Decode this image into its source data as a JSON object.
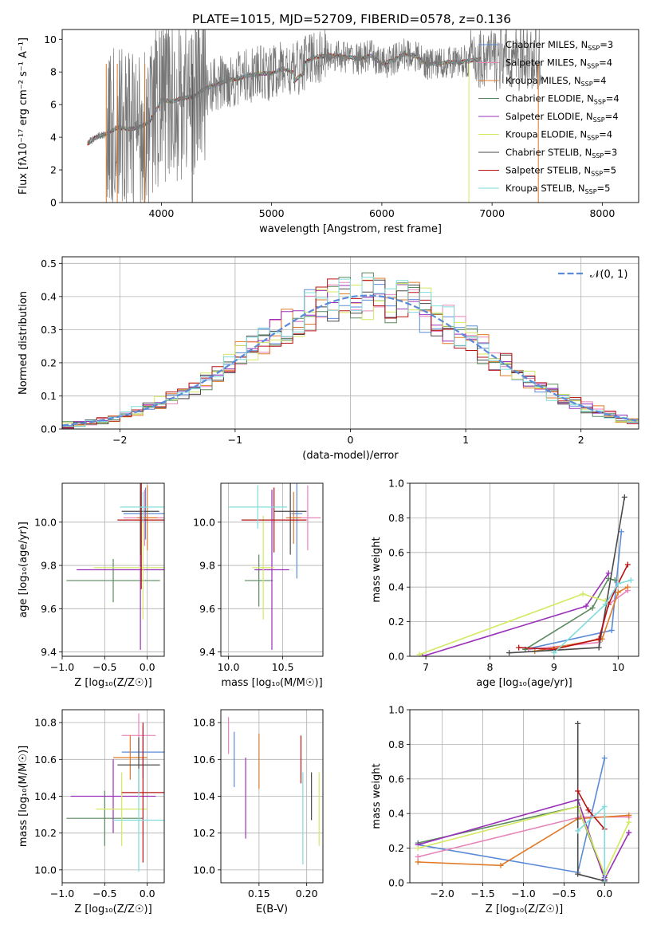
{
  "title": "PLATE=1015, MJD=52709, FIBERID=0578, z=0.136",
  "colors": {
    "Chabrier MILES": "#5b8bd8",
    "Salpeter MILES": "#e884b8",
    "Kroupa MILES": "#e07a28",
    "Chabrier ELODIE": "#5a8a5e",
    "Salpeter ELODIE": "#9a30b8",
    "Kroupa ELODIE": "#d4e860",
    "Chabrier STELIB": "#4a4a4a",
    "Salpeter STELIB": "#b81414",
    "Kroupa STELIB": "#80dcdc",
    "data": "#777777",
    "gauss": "#5b8bd8"
  },
  "chart_data": [
    {
      "id": "spectrum",
      "type": "line",
      "xlabel": "wavelength [Angstrom, rest frame]",
      "ylabel": "Flux [fλ10⁻¹⁷ erg cm⁻² s⁻¹ A⁻¹]",
      "xlim": [
        3100,
        8330
      ],
      "ylim": [
        0,
        10.6
      ],
      "xticks": [
        4000,
        5000,
        6000,
        7000,
        8000
      ],
      "yticks": [
        0,
        2,
        4,
        6,
        8,
        10
      ],
      "grid": false,
      "legend": "top-right",
      "legend_entries": [
        "Chabrier MILES, N_SSP=3",
        "Salpeter MILES, N_SSP=4",
        "Kroupa MILES, N_SSP=4",
        "Chabrier ELODIE, N_SSP=4",
        "Salpeter ELODIE, N_SSP=4",
        "Kroupa ELODIE, N_SSP=4",
        "Chabrier STELIB, N_SSP=3",
        "Salpeter STELIB, N_SSP=5",
        "Kroupa STELIB, N_SSP=5"
      ],
      "continuum": [
        [
          3330,
          3.6
        ],
        [
          3400,
          4.0
        ],
        [
          3500,
          4.2
        ],
        [
          3600,
          4.6
        ],
        [
          3700,
          4.5
        ],
        [
          3800,
          4.6
        ],
        [
          3900,
          5.0
        ],
        [
          4000,
          6.3
        ],
        [
          4100,
          6.2
        ],
        [
          4200,
          6.4
        ],
        [
          4300,
          6.5
        ],
        [
          4400,
          7.0
        ],
        [
          4500,
          7.2
        ],
        [
          4600,
          7.5
        ],
        [
          4700,
          7.6
        ],
        [
          4800,
          7.8
        ],
        [
          4900,
          7.9
        ],
        [
          5000,
          7.9
        ],
        [
          5100,
          8.2
        ],
        [
          5200,
          8.0
        ],
        [
          5300,
          8.6
        ],
        [
          5400,
          8.9
        ],
        [
          5500,
          9.0
        ],
        [
          5600,
          9.0
        ],
        [
          5700,
          8.9
        ],
        [
          5800,
          8.8
        ],
        [
          5900,
          9.0
        ],
        [
          6000,
          8.5
        ],
        [
          6100,
          8.7
        ],
        [
          6200,
          9.1
        ],
        [
          6300,
          9.0
        ],
        [
          6400,
          8.5
        ],
        [
          6500,
          8.5
        ],
        [
          6600,
          8.6
        ],
        [
          6700,
          8.6
        ],
        [
          6800,
          8.7
        ],
        [
          6900,
          8.8
        ]
      ]
    },
    {
      "id": "residuals",
      "type": "histogram",
      "xlabel": "(data-model)/error",
      "ylabel": "Normed distribution",
      "xlim": [
        -2.5,
        2.5
      ],
      "ylim": [
        0,
        0.52
      ],
      "xticks": [
        -2,
        -1,
        0,
        1,
        2
      ],
      "yticks": [
        0.0,
        0.1,
        0.2,
        0.3,
        0.4,
        0.5
      ],
      "grid": true,
      "legend": "top-right",
      "legend_entry": "𝒩(0, 1)",
      "gauss_mu": 0.15,
      "gauss_sigma": 0.99
    },
    {
      "id": "age-vs-Z",
      "type": "errorbar",
      "xlabel": "Z [log₁₀(Z/Z☉)]",
      "ylabel": "age  [log₁₀(age/yr)]",
      "xlim": [
        -1.0,
        0.2
      ],
      "ylim": [
        9.38,
        10.18
      ],
      "xticks": [
        -1.0,
        -0.5,
        0.0
      ],
      "yticks": [
        9.4,
        9.6,
        9.8,
        10.0
      ],
      "grid": true,
      "points": [
        {
          "model": "Chabrier MILES",
          "x": -0.02,
          "xerr": 0.26,
          "y": 10.04,
          "yerr": 0.12
        },
        {
          "model": "Salpeter MILES",
          "x": -0.03,
          "xerr": 0.25,
          "y": 10.02,
          "yerr": 0.13
        },
        {
          "model": "Kroupa MILES",
          "x": 0.0,
          "xerr": 0.12,
          "y": 10.02,
          "yerr": 0.15
        },
        {
          "model": "Chabrier ELODIE",
          "x": -0.4,
          "xerr": 0.55,
          "y": 9.73,
          "yerr": 0.1
        },
        {
          "model": "Salpeter ELODIE",
          "x": -0.08,
          "xerr": 0.75,
          "y": 9.78,
          "yerr": 0.37
        },
        {
          "model": "Kroupa ELODIE",
          "x": -0.05,
          "xerr": 0.58,
          "y": 9.79,
          "yerr": 0.24
        },
        {
          "model": "Chabrier STELIB",
          "x": -0.08,
          "xerr": 0.22,
          "y": 10.05,
          "yerr": 0.2
        },
        {
          "model": "Salpeter STELIB",
          "x": -0.07,
          "xerr": 0.28,
          "y": 10.01,
          "yerr": 0.32
        },
        {
          "model": "Kroupa STELIB",
          "x": -0.05,
          "xerr": 0.27,
          "y": 10.07,
          "yerr": 0.07
        }
      ]
    },
    {
      "id": "age-vs-mass",
      "type": "errorbar",
      "xlabel": "mass [log₁₀(M/M☉)]",
      "ylabel": "",
      "xlim": [
        9.93,
        10.87
      ],
      "ylim": [
        9.38,
        10.18
      ],
      "xticks": [
        10.0,
        10.5
      ],
      "yticks": [
        9.4,
        9.6,
        9.8,
        10.0
      ],
      "grid": true,
      "points": [
        {
          "model": "Chabrier MILES",
          "x": 10.63,
          "xerr": 0.05,
          "y": 10.04,
          "yerr": 0.3
        },
        {
          "model": "Salpeter MILES",
          "x": 10.73,
          "xerr": 0.12,
          "y": 10.02,
          "yerr": 0.15
        },
        {
          "model": "Kroupa MILES",
          "x": 10.6,
          "xerr": 0.07,
          "y": 10.02,
          "yerr": 0.12
        },
        {
          "model": "Chabrier ELODIE",
          "x": 10.28,
          "xerr": 0.13,
          "y": 9.73,
          "yerr": 0.12
        },
        {
          "model": "Salpeter ELODIE",
          "x": 10.4,
          "xerr": 0.16,
          "y": 9.78,
          "yerr": 0.37
        },
        {
          "model": "Kroupa ELODIE",
          "x": 10.32,
          "xerr": 0.1,
          "y": 9.79,
          "yerr": 0.24
        },
        {
          "model": "Chabrier STELIB",
          "x": 10.57,
          "xerr": 0.15,
          "y": 10.05,
          "yerr": 0.2
        },
        {
          "model": "Salpeter STELIB",
          "x": 10.42,
          "xerr": 0.3,
          "y": 10.01,
          "yerr": 0.15
        },
        {
          "model": "Kroupa STELIB",
          "x": 10.27,
          "xerr": 0.27,
          "y": 10.07,
          "yerr": 0.1
        }
      ]
    },
    {
      "id": "weight-vs-age",
      "type": "line",
      "xlabel": "age  [log₁₀(age/yr)]",
      "ylabel": "mass weight",
      "xlim": [
        6.75,
        10.32
      ],
      "ylim": [
        0,
        1.0
      ],
      "xticks": [
        7,
        8,
        9,
        10
      ],
      "yticks": [
        0.0,
        0.2,
        0.4,
        0.6,
        0.8,
        1.0
      ],
      "grid": true,
      "series": [
        {
          "model": "Chabrier MILES",
          "points": [
            [
              8.55,
              0.04
            ],
            [
              9.9,
              0.15
            ],
            [
              10.05,
              0.72
            ]
          ]
        },
        {
          "model": "Salpeter MILES",
          "points": [
            [
              8.6,
              0.04
            ],
            [
              9.7,
              0.08
            ],
            [
              9.85,
              0.3
            ],
            [
              10.15,
              0.38
            ]
          ]
        },
        {
          "model": "Kroupa MILES",
          "points": [
            [
              8.7,
              0.03
            ],
            [
              9.75,
              0.1
            ],
            [
              10.0,
              0.37
            ],
            [
              10.15,
              0.4
            ]
          ]
        },
        {
          "model": "Chabrier ELODIE",
          "points": [
            [
              8.55,
              0.04
            ],
            [
              9.6,
              0.28
            ],
            [
              9.85,
              0.45
            ],
            [
              9.95,
              0.44
            ]
          ]
        },
        {
          "model": "Salpeter ELODIE",
          "points": [
            [
              6.95,
              0.0
            ],
            [
              9.5,
              0.29
            ],
            [
              9.85,
              0.48
            ]
          ]
        },
        {
          "model": "Kroupa ELODIE",
          "points": [
            [
              6.9,
              0.01
            ],
            [
              9.45,
              0.36
            ],
            [
              9.8,
              0.32
            ]
          ]
        },
        {
          "model": "Chabrier STELIB",
          "points": [
            [
              8.3,
              0.02
            ],
            [
              9.7,
              0.05
            ],
            [
              10.1,
              0.92
            ]
          ]
        },
        {
          "model": "Salpeter STELIB",
          "points": [
            [
              8.45,
              0.05
            ],
            [
              9.0,
              0.04
            ],
            [
              9.7,
              0.1
            ],
            [
              9.85,
              0.3
            ],
            [
              10.0,
              0.42
            ],
            [
              10.15,
              0.53
            ]
          ]
        },
        {
          "model": "Kroupa STELIB",
          "points": [
            [
              9.0,
              0.02
            ],
            [
              9.8,
              0.3
            ],
            [
              10.0,
              0.42
            ],
            [
              10.2,
              0.44
            ]
          ]
        }
      ]
    },
    {
      "id": "mass-vs-Z",
      "type": "errorbar",
      "xlabel": "Z [log₁₀(Z/Z☉)]",
      "ylabel": "mass [log₁₀(M/M☉)]",
      "xlim": [
        -1.0,
        0.2
      ],
      "ylim": [
        9.93,
        10.87
      ],
      "xticks": [
        -1.0,
        -0.5,
        0.0
      ],
      "yticks": [
        10.0,
        10.2,
        10.4,
        10.6,
        10.8
      ],
      "grid": true,
      "points": [
        {
          "model": "Chabrier MILES",
          "x": -0.05,
          "xerr": 0.25,
          "y": 10.64,
          "yerr": 0.14
        },
        {
          "model": "Salpeter MILES",
          "x": -0.1,
          "xerr": 0.2,
          "y": 10.73,
          "yerr": 0.12
        },
        {
          "model": "Kroupa MILES",
          "x": -0.2,
          "xerr": 0.2,
          "y": 10.61,
          "yerr": 0.12
        },
        {
          "model": "Chabrier ELODIE",
          "x": -0.5,
          "xerr": 0.45,
          "y": 10.28,
          "yerr": 0.15
        },
        {
          "model": "Salpeter ELODIE",
          "x": -0.4,
          "xerr": 0.5,
          "y": 10.4,
          "yerr": 0.2
        },
        {
          "model": "Kroupa ELODIE",
          "x": -0.3,
          "xerr": 0.3,
          "y": 10.33,
          "yerr": 0.2
        },
        {
          "model": "Chabrier STELIB",
          "x": -0.1,
          "xerr": 0.25,
          "y": 10.57,
          "yerr": 0.15
        },
        {
          "model": "Salpeter STELIB",
          "x": -0.05,
          "xerr": 0.25,
          "y": 10.42,
          "yerr": 0.38
        },
        {
          "model": "Kroupa STELIB",
          "x": -0.1,
          "xerr": 0.3,
          "y": 10.27,
          "yerr": 0.28
        }
      ]
    },
    {
      "id": "mass-vs-EBV",
      "type": "errorbar",
      "xlabel": "E(B-V)",
      "ylabel": "",
      "xlim": [
        0.11,
        0.217
      ],
      "ylim": [
        9.93,
        10.87
      ],
      "xticks": [
        0.1,
        0.15,
        0.2
      ],
      "yticks": [
        10.0,
        10.2,
        10.4,
        10.6,
        10.8
      ],
      "grid": true,
      "points": [
        {
          "model": "Salpeter MILES",
          "x": 0.118,
          "y": 10.73,
          "yerr": 0.1
        },
        {
          "model": "Chabrier MILES",
          "x": 0.124,
          "y": 10.6,
          "yerr": 0.15
        },
        {
          "model": "Salpeter ELODIE",
          "x": 0.136,
          "y": 10.39,
          "yerr": 0.22
        },
        {
          "model": "Kroupa MILES",
          "x": 0.15,
          "y": 10.59,
          "yerr": 0.15
        },
        {
          "model": "Salpeter STELIB",
          "x": 0.194,
          "y": 10.6,
          "yerr": 0.13
        },
        {
          "model": "Kroupa STELIB",
          "x": 0.196,
          "y": 10.28,
          "yerr": 0.25
        },
        {
          "model": "Chabrier STELIB",
          "x": 0.205,
          "y": 10.4,
          "yerr": 0.13
        },
        {
          "model": "Kroupa ELODIE",
          "x": 0.213,
          "y": 10.33,
          "yerr": 0.2
        }
      ]
    },
    {
      "id": "weight-vs-Z",
      "type": "line",
      "xlabel": "Z [log₁₀(Z/Z☉)]",
      "ylabel": "mass weight",
      "xlim": [
        -2.4,
        0.42
      ],
      "ylim": [
        0,
        1.0
      ],
      "xticks": [
        -2.0,
        -1.5,
        -1.0,
        -0.5,
        0.0
      ],
      "yticks": [
        0.0,
        0.2,
        0.4,
        0.6,
        0.8,
        1.0
      ],
      "grid": true,
      "series": [
        {
          "model": "Chabrier MILES",
          "points": [
            [
              -2.3,
              0.22
            ],
            [
              -0.33,
              0.06
            ],
            [
              0.0,
              0.72
            ]
          ]
        },
        {
          "model": "Salpeter MILES",
          "points": [
            [
              -2.3,
              0.15
            ],
            [
              -0.3,
              0.38
            ],
            [
              0.3,
              0.38
            ]
          ]
        },
        {
          "model": "Kroupa MILES",
          "points": [
            [
              -2.3,
              0.12
            ],
            [
              -1.28,
              0.1
            ],
            [
              -0.33,
              0.37
            ],
            [
              0.3,
              0.39
            ]
          ]
        },
        {
          "model": "Chabrier ELODIE",
          "points": [
            [
              -2.3,
              0.23
            ],
            [
              -0.33,
              0.44
            ],
            [
              0.0,
              0.03
            ]
          ]
        },
        {
          "model": "Salpeter ELODIE",
          "points": [
            [
              -2.3,
              0.22
            ],
            [
              -0.33,
              0.48
            ],
            [
              0.0,
              0.02
            ],
            [
              0.3,
              0.29
            ]
          ]
        },
        {
          "model": "Kroupa ELODIE",
          "points": [
            [
              -2.3,
              0.2
            ],
            [
              -0.33,
              0.44
            ],
            [
              0.0,
              0.05
            ],
            [
              0.3,
              0.35
            ]
          ]
        },
        {
          "model": "Chabrier STELIB",
          "points": [
            [
              -0.33,
              0.92
            ],
            [
              -0.33,
              0.05
            ],
            [
              0.0,
              0.01
            ]
          ]
        },
        {
          "model": "Salpeter STELIB",
          "points": [
            [
              -0.33,
              0.53
            ],
            [
              -0.2,
              0.42
            ],
            [
              0.0,
              0.31
            ]
          ]
        },
        {
          "model": "Kroupa STELIB",
          "points": [
            [
              -0.33,
              0.3
            ],
            [
              0.0,
              0.44
            ],
            [
              0.0,
              0.0
            ]
          ]
        }
      ]
    }
  ]
}
